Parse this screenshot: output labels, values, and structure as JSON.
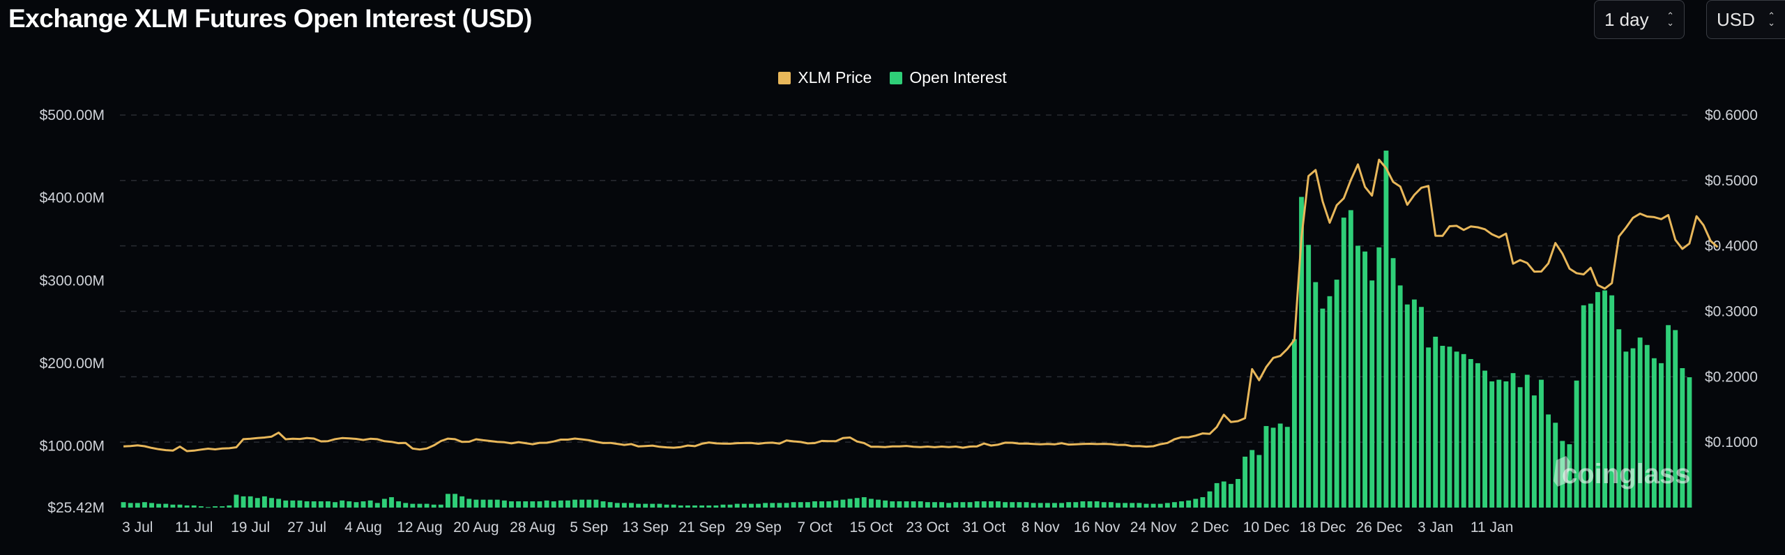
{
  "header": {
    "title": "Exchange XLM Futures Open Interest (USD)",
    "range_label": "1 day",
    "unit_label": "USD"
  },
  "watermark": "coinglass",
  "colors": {
    "price": "#e8b75a",
    "open_interest": "#2fcf78",
    "background": "#05070b",
    "grid": "#2a2d33"
  },
  "chart_data": {
    "type": "bar",
    "title": "Exchange XLM Futures Open Interest (USD)",
    "legend_position": "top-center",
    "grid": true,
    "x_ticks": [
      "3 Jul",
      "11 Jul",
      "19 Jul",
      "27 Jul",
      "4 Aug",
      "12 Aug",
      "20 Aug",
      "28 Aug",
      "5 Sep",
      "13 Sep",
      "21 Sep",
      "29 Sep",
      "7 Oct",
      "15 Oct",
      "23 Oct",
      "31 Oct",
      "8 Nov",
      "16 Nov",
      "24 Nov",
      "2 Dec",
      "10 Dec",
      "18 Dec",
      "26 Dec",
      "3 Jan",
      "11 Jan"
    ],
    "y_left": {
      "ticks": [
        "$25.42M",
        "$100.00M",
        "$200.00M",
        "$300.00M",
        "$400.00M",
        "$500.00M"
      ],
      "tick_values": [
        25.42,
        100,
        200,
        300,
        400,
        500
      ],
      "range": [
        25.42,
        500
      ],
      "unit": "USD millions"
    },
    "y_right": {
      "ticks": [
        "$0.1000",
        "$0.2000",
        "$0.3000",
        "$0.4000",
        "$0.5000",
        "$0.6000"
      ],
      "tick_values": [
        0.1,
        0.2,
        0.3,
        0.4,
        0.5,
        0.6
      ],
      "range": [
        0.0,
        0.6
      ]
    },
    "series": [
      {
        "name": "Open Interest",
        "type": "bar",
        "axis": "left",
        "values": [
          32,
          31,
          31,
          32,
          31,
          30,
          30,
          29,
          29,
          28,
          28,
          27,
          26,
          27,
          27,
          28,
          41,
          39,
          39,
          37,
          39,
          37,
          36,
          34,
          34,
          34,
          33,
          33,
          33,
          33,
          32,
          34,
          33,
          32,
          33,
          34,
          31,
          36,
          38,
          33,
          31,
          30,
          30,
          30,
          29,
          29,
          42,
          42,
          39,
          36,
          35,
          35,
          35,
          35,
          34,
          33,
          33,
          33,
          33,
          33,
          34,
          33,
          34,
          34,
          35,
          35,
          35,
          35,
          33,
          32,
          31,
          31,
          31,
          30,
          30,
          30,
          30,
          29,
          29,
          28,
          28,
          28,
          28,
          28,
          28,
          29,
          29,
          30,
          30,
          30,
          30,
          31,
          31,
          31,
          31,
          32,
          32,
          32,
          33,
          33,
          33,
          34,
          35,
          36,
          37,
          38,
          36,
          35,
          34,
          33,
          33,
          33,
          33,
          33,
          32,
          32,
          32,
          31,
          32,
          32,
          32,
          33,
          33,
          33,
          33,
          32,
          32,
          32,
          32,
          31,
          31,
          31,
          31,
          31,
          32,
          32,
          33,
          33,
          33,
          32,
          32,
          31,
          31,
          31,
          31,
          30,
          30,
          30,
          31,
          32,
          33,
          34,
          36,
          38,
          45,
          55,
          57,
          54,
          60,
          87,
          95,
          89,
          124,
          122,
          127,
          123,
          229,
          401,
          343,
          298,
          266,
          281,
          301,
          376,
          385,
          342,
          335,
          300,
          340,
          457,
          327,
          294,
          271,
          277,
          268,
          219,
          232,
          221,
          220,
          214,
          211,
          205,
          200,
          191,
          178,
          180,
          178,
          188,
          171,
          186,
          161,
          180,
          138,
          128,
          106,
          102,
          179,
          270,
          272,
          286,
          288,
          282,
          241,
          214,
          218,
          231,
          222,
          206,
          200,
          246,
          240,
          194,
          183
        ],
        "x_start": "1 Jul",
        "x_end": "15 Jan",
        "interval": "1 day"
      },
      {
        "name": "XLM Price",
        "type": "line",
        "axis": "right",
        "values": [
          0.0935,
          0.094,
          0.0951,
          0.0938,
          0.0912,
          0.0892,
          0.0878,
          0.0871,
          0.0932,
          0.0863,
          0.0871,
          0.0887,
          0.09,
          0.089,
          0.0903,
          0.0907,
          0.0922,
          0.1045,
          0.1052,
          0.1062,
          0.1071,
          0.1085,
          0.1146,
          0.1044,
          0.1052,
          0.1049,
          0.1063,
          0.1055,
          0.1012,
          0.1016,
          0.1047,
          0.1063,
          0.1057,
          0.105,
          0.1034,
          0.1052,
          0.1045,
          0.1015,
          0.1005,
          0.0985,
          0.0988,
          0.0903,
          0.0888,
          0.0904,
          0.0951,
          0.1017,
          0.1054,
          0.1045,
          0.1004,
          0.1007,
          0.1044,
          0.1029,
          0.1018,
          0.1004,
          0.0999,
          0.0981,
          0.1001,
          0.0985,
          0.0969,
          0.099,
          0.0991,
          0.101,
          0.1039,
          0.1039,
          0.1055,
          0.1043,
          0.1029,
          0.1006,
          0.0987,
          0.0989,
          0.0974,
          0.0958,
          0.0971,
          0.0935,
          0.0941,
          0.0947,
          0.0929,
          0.0921,
          0.0915,
          0.0925,
          0.0948,
          0.0939,
          0.0976,
          0.0995,
          0.0982,
          0.0978,
          0.0976,
          0.0985,
          0.0987,
          0.0989,
          0.0975,
          0.0988,
          0.0992,
          0.0978,
          0.1025,
          0.1012,
          0.1003,
          0.0982,
          0.0986,
          0.1019,
          0.1016,
          0.1016,
          0.1063,
          0.1071,
          0.101,
          0.0986,
          0.0929,
          0.0929,
          0.0925,
          0.0936,
          0.0936,
          0.0942,
          0.0929,
          0.0925,
          0.0932,
          0.0923,
          0.0933,
          0.0925,
          0.0933,
          0.0915,
          0.0933,
          0.0936,
          0.0979,
          0.0948,
          0.0962,
          0.0992,
          0.0991,
          0.0978,
          0.0979,
          0.0973,
          0.0967,
          0.0973,
          0.0967,
          0.0984,
          0.0963,
          0.0968,
          0.0972,
          0.0975,
          0.0971,
          0.0974,
          0.097,
          0.0958,
          0.0959,
          0.0939,
          0.094,
          0.0931,
          0.0938,
          0.0969,
          0.0988,
          0.1044,
          0.1075,
          0.1075,
          0.11,
          0.1134,
          0.1128,
          0.1232,
          0.142,
          0.1308,
          0.1321,
          0.1366,
          0.2116,
          0.1947,
          0.2146,
          0.2288,
          0.2319,
          0.2426,
          0.2564,
          0.4121,
          0.5068,
          0.516,
          0.4681,
          0.4355,
          0.4622,
          0.4728,
          0.5006,
          0.5246,
          0.4901,
          0.4769,
          0.5317,
          0.5189,
          0.4978,
          0.4907,
          0.4628,
          0.478,
          0.4888,
          0.4916,
          0.4155,
          0.4153,
          0.43,
          0.4307,
          0.4244,
          0.4297,
          0.4284,
          0.4254,
          0.4178,
          0.413,
          0.4187,
          0.3728,
          0.3783,
          0.3737,
          0.3606,
          0.3609,
          0.3732,
          0.4043,
          0.3882,
          0.3651,
          0.3583,
          0.3565,
          0.3665,
          0.3401,
          0.3347,
          0.3431,
          0.4143,
          0.4279,
          0.4429,
          0.4493,
          0.4449,
          0.444,
          0.4409,
          0.4472,
          0.4093,
          0.3955,
          0.4036,
          0.4454,
          0.4315,
          0.4076,
          0.3982
        ],
        "x_start": "1 Jul",
        "x_end": "15 Jan",
        "interval": "1 day"
      }
    ]
  }
}
